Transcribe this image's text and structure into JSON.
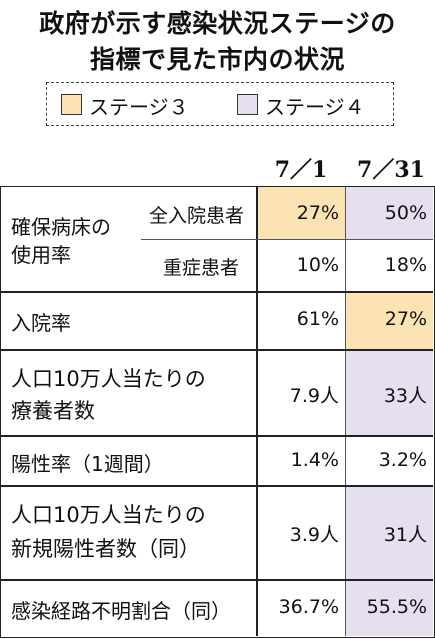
{
  "title": {
    "line1": "政府が示す感染状況ステージの",
    "line2": "指標で見た市内の状況"
  },
  "legend": {
    "stage3": {
      "label": "ステージ３",
      "color": "#fce3b4"
    },
    "stage4": {
      "label": "ステージ４",
      "color": "#e5dff0"
    }
  },
  "columns": [
    "7／1",
    "7／31"
  ],
  "table": {
    "bed_usage_label_line1": "確保病床の",
    "bed_usage_label_line2": "使用率",
    "rows": [
      {
        "sub": "全入院患者",
        "v1": "27%",
        "v2": "50%"
      },
      {
        "sub": "重症患者",
        "v1": "10%",
        "v2": "18%"
      },
      {
        "label": "入院率",
        "v1": "61%",
        "v2": "27%"
      },
      {
        "label1": "人口10万人当たりの",
        "label2": "療養者数",
        "v1": "7.9人",
        "v2": "33人"
      },
      {
        "label": "陽性率（1週間）",
        "v1": "1.4%",
        "v2": "3.2%"
      },
      {
        "label1": "人口10万人当たりの",
        "label2": "新規陽性者数（同）",
        "v1": "3.9人",
        "v2": "31人"
      },
      {
        "label": "感染経路不明割合（同）",
        "v1": "36.7%",
        "v2": "55.5%"
      }
    ]
  }
}
